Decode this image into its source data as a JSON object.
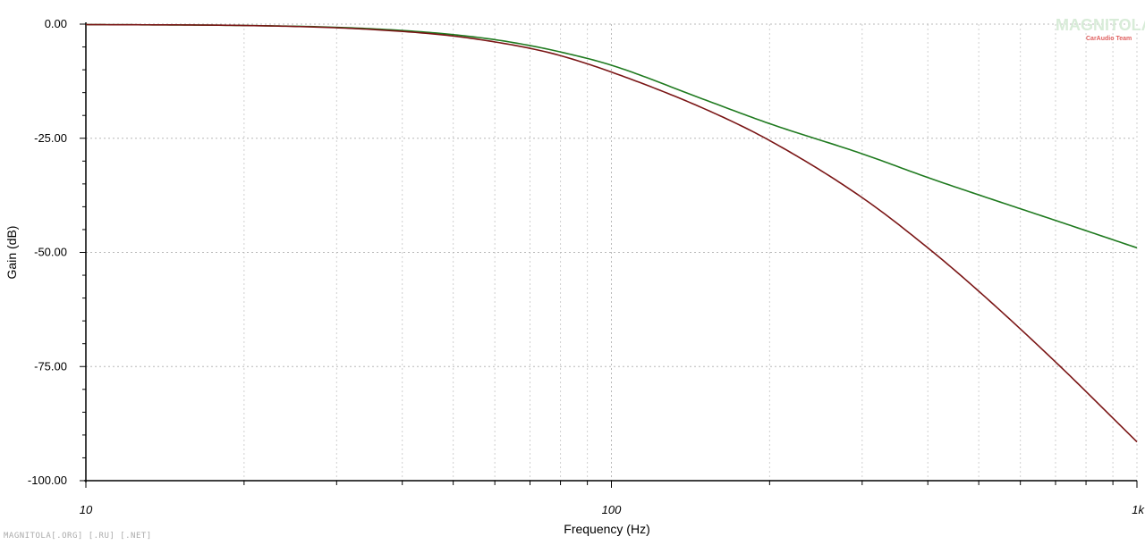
{
  "chart_data": {
    "type": "line",
    "xlabel": "Frequency (Hz)",
    "ylabel": "Gain (dB)",
    "x_scale": "log",
    "xlim": [
      10,
      1000
    ],
    "ylim": [
      -100,
      0
    ],
    "x_ticks": [
      {
        "value": 10,
        "label": "10"
      },
      {
        "value": 100,
        "label": "100"
      },
      {
        "value": 1000,
        "label": "1k"
      }
    ],
    "y_ticks": [
      {
        "value": 0,
        "label": "0.00"
      },
      {
        "value": -25,
        "label": "-25.00"
      },
      {
        "value": -50,
        "label": "-50.00"
      },
      {
        "value": -75,
        "label": "-75.00"
      },
      {
        "value": -100,
        "label": "-100.00"
      }
    ],
    "grid": true,
    "series": [
      {
        "color": "#1f7a1f",
        "x": [
          10,
          20,
          30,
          40,
          50,
          60,
          70,
          80,
          100,
          150,
          200,
          300,
          400,
          500,
          700,
          1000
        ],
        "y": [
          -0.1,
          -0.3,
          -0.7,
          -1.4,
          -2.3,
          -3.4,
          -4.7,
          -6.1,
          -9.0,
          -16.5,
          -21.8,
          -28.4,
          -33.6,
          -37.4,
          -43.0,
          -49.0
        ]
      },
      {
        "color": "#7a1515",
        "x": [
          10,
          20,
          30,
          40,
          50,
          60,
          70,
          80,
          100,
          150,
          200,
          300,
          400,
          500,
          700,
          1000
        ],
        "y": [
          -0.1,
          -0.3,
          -0.8,
          -1.6,
          -2.6,
          -3.9,
          -5.3,
          -6.9,
          -10.5,
          -18.5,
          -25.5,
          -38.0,
          -49.0,
          -58.5,
          -74.0,
          -91.5
        ]
      }
    ]
  },
  "footer": "MAGNITOLA[.ORG] [.RU] [.NET]",
  "watermark": {
    "main": "MAGNITOLA",
    "sub": "CarAudio Team"
  }
}
